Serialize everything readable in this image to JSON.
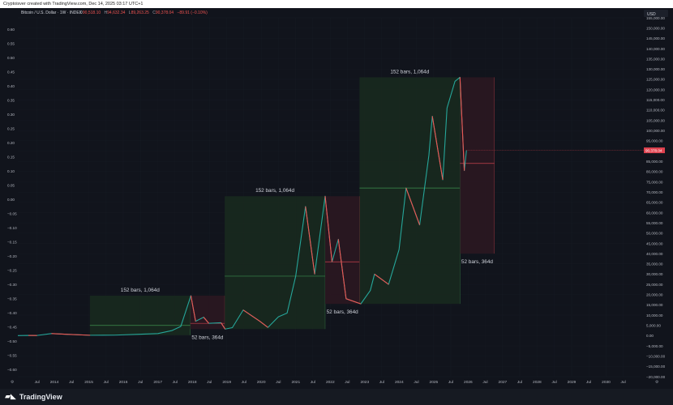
{
  "header": {
    "attribution": "Cryptoisver created with TradingView.com, Dec 14, 2025 03:17 UTC+1",
    "symbol": "Bitcoin / U.S. Dollar · 1W · INDEX",
    "ohlc": {
      "o_label": "O",
      "o": "90,518.10",
      "h_label": "H",
      "h": "94,632.34",
      "l_label": "L",
      "l": "89,263.25",
      "c_label": "C",
      "c": "90,378.04",
      "change": "−89.91 (−0.10%)"
    }
  },
  "currency_label": "USD",
  "price_badge": "90,378.04",
  "brand": {
    "name": "TradingView",
    "logo_icon": "tradingview-logo-icon"
  },
  "colors": {
    "bg": "#11141c",
    "green_box": "#18291f",
    "red_box": "#2b1721",
    "green_line": "#3d8f4d",
    "red_line": "#c7414b",
    "up": "#26a69a",
    "down": "#ef5350",
    "price_tag": "#e0424f"
  },
  "chart_data": {
    "type": "line",
    "series": [
      {
        "values": [
          [
            "2012-12-10",
            13
          ],
          [
            "2013-04-01",
            120
          ],
          [
            "2013-07-01",
            90
          ],
          [
            "2013-12-01",
            1000
          ],
          [
            "2014-06-01",
            600
          ],
          [
            "2015-01-15",
            200
          ],
          [
            "2015-10-01",
            250
          ],
          [
            "2016-06-15",
            650
          ],
          [
            "2017-01-01",
            1000
          ],
          [
            "2017-06-01",
            2500
          ],
          [
            "2017-09-01",
            4500
          ],
          [
            "2017-12-17",
            19500
          ],
          [
            "2018-02-05",
            7000
          ],
          [
            "2018-05-01",
            9000
          ],
          [
            "2018-06-25",
            6000
          ],
          [
            "2018-11-01",
            6300
          ],
          [
            "2018-12-15",
            3200
          ],
          [
            "2019-03-01",
            3900
          ],
          [
            "2019-06-24",
            12500
          ],
          [
            "2019-12-15",
            7100
          ],
          [
            "2020-03-12",
            4000
          ],
          [
            "2020-07-01",
            9200
          ],
          [
            "2020-10-01",
            11000
          ],
          [
            "2020-12-31",
            29000
          ],
          [
            "2021-04-14",
            63000
          ],
          [
            "2021-07-20",
            30000
          ],
          [
            "2021-11-08",
            68000
          ],
          [
            "2022-01-20",
            36000
          ],
          [
            "2022-03-28",
            47000
          ],
          [
            "2022-06-18",
            18000
          ],
          [
            "2022-11-21",
            15500
          ],
          [
            "2023-03-01",
            22000
          ],
          [
            "2023-04-15",
            30000
          ],
          [
            "2023-09-11",
            25000
          ],
          [
            "2023-12-31",
            42000
          ],
          [
            "2024-03-14",
            72000
          ],
          [
            "2024-08-05",
            54000
          ],
          [
            "2024-11-11",
            88000
          ],
          [
            "2024-12-17",
            107000
          ],
          [
            "2025-04-07",
            76000
          ],
          [
            "2025-05-22",
            111000
          ],
          [
            "2025-08-14",
            124000
          ],
          [
            "2025-10-06",
            126000
          ],
          [
            "2025-11-21",
            80500
          ],
          [
            "2025-12-14",
            90378
          ]
        ]
      }
    ],
    "left_axis_ticks": [
      "0.60",
      "0.55",
      "0.50",
      "0.45",
      "0.40",
      "0.35",
      "0.30",
      "0.25",
      "0.20",
      "0.15",
      "0.10",
      "0.05",
      "0.00",
      "−0.05",
      "−0.10",
      "−0.15",
      "−0.20",
      "−0.25",
      "−0.30",
      "−0.35",
      "−0.40",
      "−0.45",
      "−0.50",
      "−0.55",
      "−0.60"
    ],
    "right_axis_ticks": [
      "155,000.00",
      "150,000.00",
      "145,000.00",
      "140,000.00",
      "135,000.00",
      "130,000.00",
      "125,000.00",
      "120,000.00",
      "115,000.00",
      "110,000.00",
      "105,000.00",
      "100,000.00",
      "95,000.00",
      "90,000.00",
      "85,000.00",
      "80,000.00",
      "75,000.00",
      "70,000.00",
      "65,000.00",
      "60,000.00",
      "55,000.00",
      "50,000.00",
      "45,000.00",
      "40,000.00",
      "35,000.00",
      "30,000.00",
      "25,000.00",
      "20,000.00",
      "15,000.00",
      "10,000.00",
      "5,000.00",
      "0.00",
      "−5,000.00",
      "−10,000.00",
      "−15,000.00",
      "−20,000.00"
    ],
    "y_range": [
      -20000,
      155000
    ],
    "x_ticks": [
      "Jul",
      "2014",
      "Jul",
      "2015",
      "Jul",
      "2016",
      "Jul",
      "2017",
      "Jul",
      "2018",
      "Jul",
      "2019",
      "Jul",
      "2020",
      "Jul",
      "2021",
      "Jul",
      "2022",
      "Jul",
      "2023",
      "Jul",
      "2024",
      "Jul",
      "2025",
      "Jul",
      "2026",
      "Jul",
      "2027",
      "Jul",
      "2028",
      "Jul",
      "2029",
      "Jul",
      "2030",
      "Jul"
    ],
    "x_tick_dates": [
      "2013-07-01",
      "2014-01-01",
      "2014-07-01",
      "2015-01-01",
      "2015-07-01",
      "2016-01-01",
      "2016-07-01",
      "2017-01-01",
      "2017-07-01",
      "2018-01-01",
      "2018-07-01",
      "2019-01-01",
      "2019-07-01",
      "2020-01-01",
      "2020-07-01",
      "2021-01-01",
      "2021-07-01",
      "2022-01-01",
      "2022-07-01",
      "2023-01-01",
      "2023-07-01",
      "2024-01-01",
      "2024-07-01",
      "2025-01-01",
      "2025-07-01",
      "2026-01-01",
      "2026-07-01",
      "2027-01-01",
      "2027-07-01",
      "2028-01-01",
      "2028-07-01",
      "2029-01-01",
      "2029-07-01",
      "2030-01-01",
      "2030-07-01"
    ],
    "annotations": [
      {
        "kind": "bull",
        "label": "152 bars, 1,064d",
        "start": "2015-01-12",
        "end": "2017-12-11",
        "low": 200,
        "high": 19500,
        "mid": 5000
      },
      {
        "kind": "bear",
        "label": "52 bars, 364d",
        "start": "2017-12-11",
        "end": "2018-12-10",
        "low": 3200,
        "high": 19500,
        "mid": 6000
      },
      {
        "kind": "bull",
        "label": "152 bars, 1,064d",
        "start": "2018-12-10",
        "end": "2021-11-08",
        "low": 3200,
        "high": 68000,
        "mid": 29000
      },
      {
        "kind": "bear",
        "label": "52 bars, 364d",
        "start": "2021-11-08",
        "end": "2022-11-07",
        "low": 15500,
        "high": 68000,
        "mid": 36000
      },
      {
        "kind": "bull",
        "label": "152 bars, 1,064d",
        "start": "2022-11-07",
        "end": "2025-10-06",
        "low": 15500,
        "high": 126000,
        "mid": 72000
      },
      {
        "kind": "bear",
        "label": "52 bars, 364d",
        "start": "2025-10-06",
        "end": "2026-10-05",
        "low": 40000,
        "high": 126000,
        "mid": 84000
      }
    ]
  }
}
